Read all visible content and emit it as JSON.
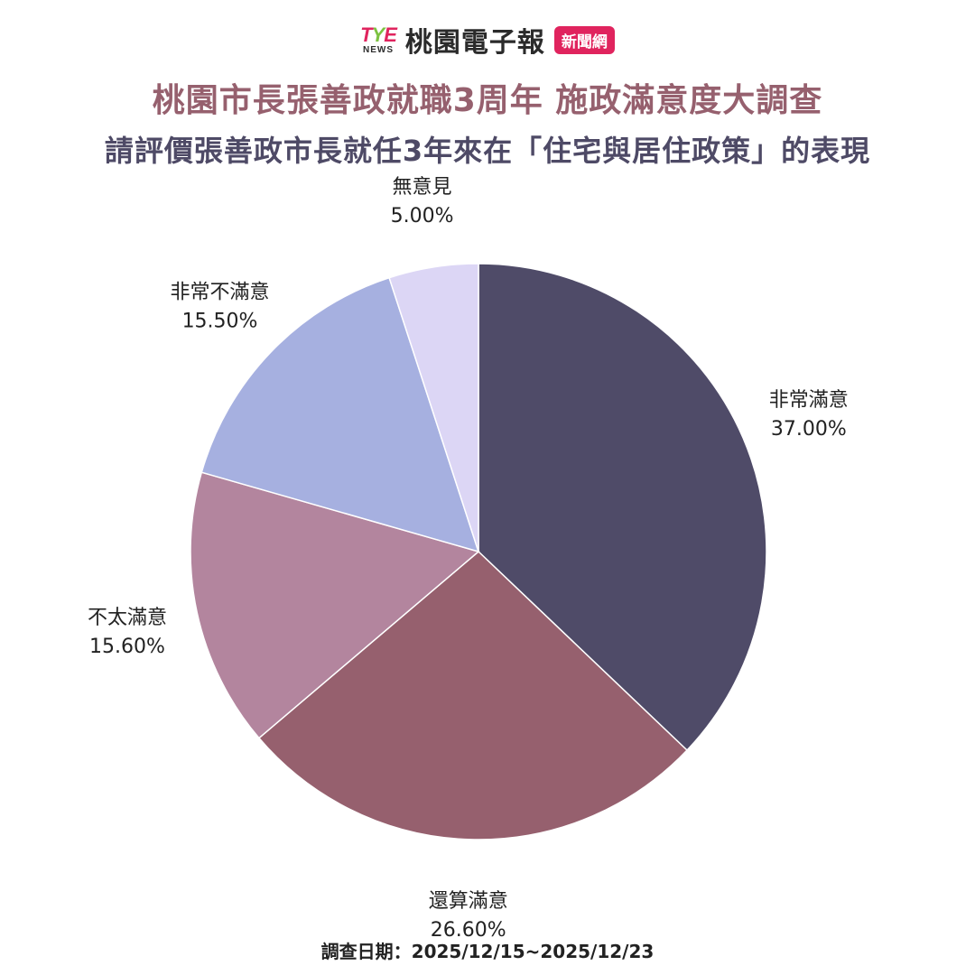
{
  "header": {
    "logo_letters": [
      "T",
      "Y",
      "E"
    ],
    "logo_sub": "NEWS",
    "brand_name": "桃園電子報",
    "badge": "新聞網"
  },
  "title": "桃園市長張善政就職3周年  施政滿意度大調查",
  "subtitle": "請評價張善政市長就任3年來在「住宅與居住政策」的表現",
  "footer": "調查日期：2025/12/15~2025/12/23",
  "colors": {
    "title": "#96606e",
    "subtitle": "#4e4a66",
    "brand_pink": "#e0245e",
    "brand_green": "#7cc242"
  },
  "chart_data": {
    "type": "pie",
    "start_angle_deg": 0,
    "direction": "clockwise",
    "slices": [
      {
        "label": "非常滿意",
        "value": 37.0,
        "display": "37.00%",
        "color": "#4f4b68"
      },
      {
        "label": "還算滿意",
        "value": 26.6,
        "display": "26.60%",
        "color": "#96606e"
      },
      {
        "label": "不太滿意",
        "value": 15.6,
        "display": "15.60%",
        "color": "#b3859e"
      },
      {
        "label": "非常不滿意",
        "value": 15.5,
        "display": "15.50%",
        "color": "#a6b0e0"
      },
      {
        "label": "無意見",
        "value": 5.0,
        "display": "5.00%",
        "color": "#dcd6f5"
      }
    ]
  }
}
